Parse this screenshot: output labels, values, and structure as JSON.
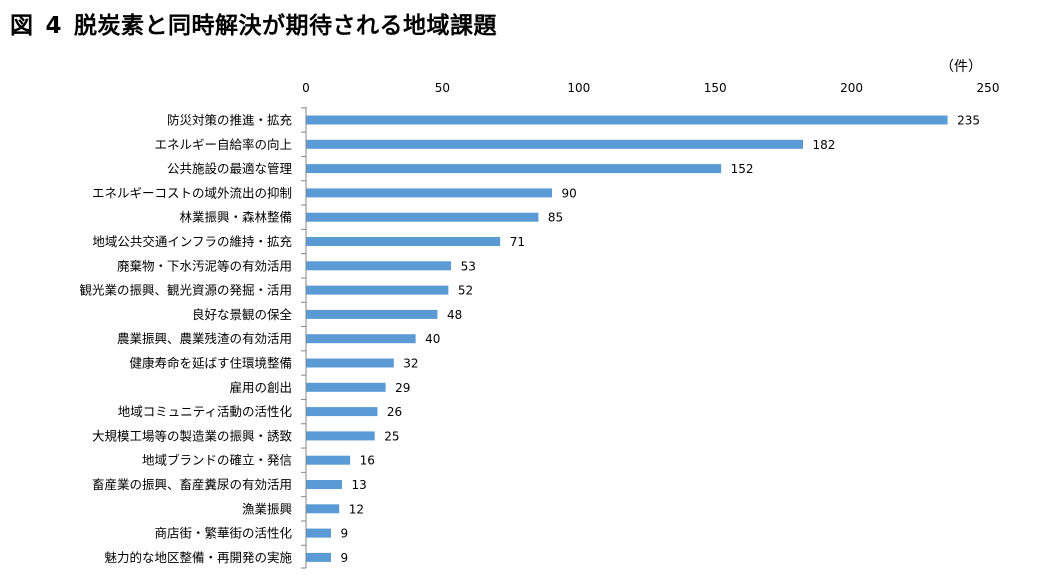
{
  "figure": {
    "label": "図",
    "number": "4",
    "title": "脱炭素と同時解決が期待される地域課題"
  },
  "unit_label": "（件）",
  "colors": {
    "bar": "#5B9BD5",
    "axis": "#868686",
    "text": "#000000"
  },
  "chart_data": {
    "type": "bar",
    "orientation": "horizontal",
    "title": "脱炭素と同時解決が期待される地域課題",
    "xlabel": "",
    "ylabel": "",
    "xlim": [
      0,
      250
    ],
    "x_ticks": [
      0,
      50,
      100,
      150,
      200,
      250
    ],
    "grid": false,
    "legend": "none",
    "categories": [
      "防災対策の推進・拡充",
      "エネルギー自給率の向上",
      "公共施設の最適な管理",
      "エネルギーコストの域外流出の抑制",
      "林業振興・森林整備",
      "地域公共交通インフラの維持・拡充",
      "廃棄物・下水汚泥等の有効活用",
      "観光業の振興、観光資源の発掘・活用",
      "良好な景観の保全",
      "農業振興、農業残渣の有効活用",
      "健康寿命を延ばす住環境整備",
      "雇用の創出",
      "地域コミュニティ活動の活性化",
      "大規模工場等の製造業の振興・誘致",
      "地域ブランドの確立・発信",
      "畜産業の振興、畜産糞尿の有効活用",
      "漁業振興",
      "商店街・繁華街の活性化",
      "魅力的な地区整備・再開発の実施"
    ],
    "values": [
      235,
      182,
      152,
      90,
      85,
      71,
      53,
      52,
      48,
      40,
      32,
      29,
      26,
      25,
      16,
      13,
      12,
      9,
      9
    ]
  }
}
